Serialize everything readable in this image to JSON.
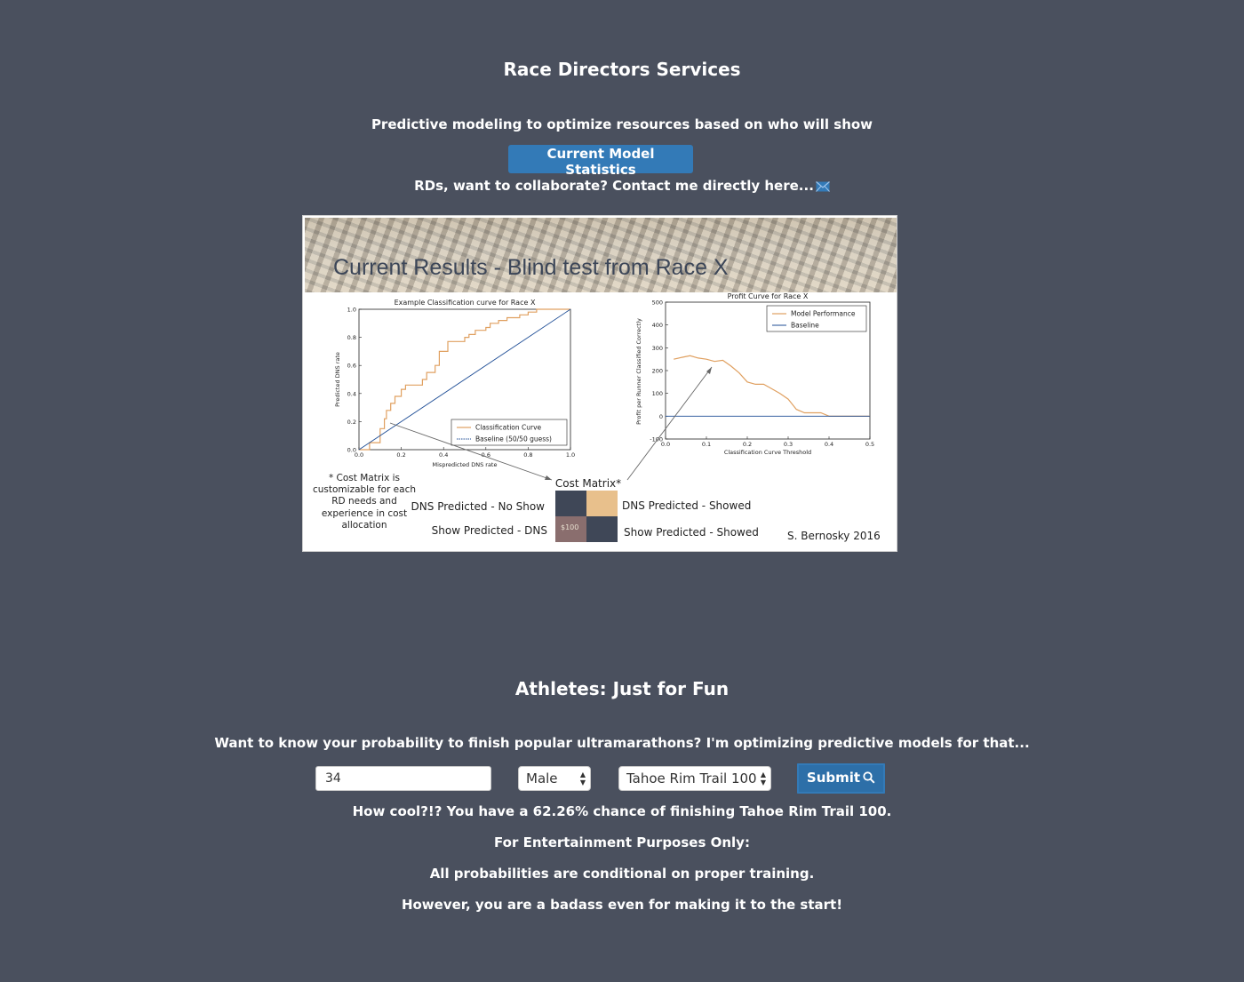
{
  "rd": {
    "title": "Race Directors Services",
    "subtitle": "Predictive modeling to optimize resources based on who will show",
    "stats_button": "Current Model Statistics",
    "collab_text": "RDs, want to collaborate? Contact me directly here...",
    "mail_icon": "envelope-icon"
  },
  "figure": {
    "banner_title": "Current Results - Blind test from Race X",
    "note": [
      "* Cost Matrix is",
      "customizable for each",
      "RD needs and",
      "experience in cost",
      "allocation"
    ],
    "cost_matrix": {
      "title": "Cost Matrix*",
      "row1_left": "DNS Predicted - No Show",
      "row1_right": "DNS Predicted - Showed",
      "row2_left": "Show Predicted - DNS",
      "row2_right": "Show Predicted - Showed",
      "cell_value": "$100",
      "colors": {
        "dark": "#3f4757",
        "peach": "#e8c08c",
        "mauve": "#8a6e6e"
      }
    },
    "credit": "S. Bernosky 2016"
  },
  "chart_data": [
    {
      "type": "line",
      "title": "Example Classification curve for Race X",
      "xlabel": "Mispredicted DNS rate",
      "ylabel": "Predicted DNS rate",
      "xlim": [
        0,
        1
      ],
      "ylim": [
        0,
        1
      ],
      "xticks": [
        "0.0",
        "0.2",
        "0.4",
        "0.6",
        "0.8",
        "1.0"
      ],
      "yticks": [
        "0.0",
        "0.2",
        "0.4",
        "0.6",
        "0.8",
        "1.0"
      ],
      "legend": "bottom-right",
      "series": [
        {
          "name": "Classification Curve",
          "color": "#e0a060",
          "style": "step",
          "x": [
            0,
            0.05,
            0.05,
            0.1,
            0.1,
            0.12,
            0.12,
            0.13,
            0.13,
            0.15,
            0.15,
            0.17,
            0.17,
            0.2,
            0.2,
            0.22,
            0.22,
            0.3,
            0.3,
            0.32,
            0.32,
            0.36,
            0.36,
            0.38,
            0.38,
            0.42,
            0.42,
            0.5,
            0.5,
            0.52,
            0.52,
            0.55,
            0.55,
            0.6,
            0.6,
            0.62,
            0.62,
            0.66,
            0.66,
            0.7,
            0.7,
            0.76,
            0.76,
            0.8,
            0.8,
            0.84,
            0.84,
            0.9,
            0.9,
            1.0
          ],
          "y": [
            0,
            0,
            0.05,
            0.05,
            0.15,
            0.15,
            0.22,
            0.22,
            0.28,
            0.28,
            0.33,
            0.33,
            0.38,
            0.38,
            0.43,
            0.43,
            0.46,
            0.46,
            0.5,
            0.5,
            0.55,
            0.55,
            0.6,
            0.6,
            0.7,
            0.7,
            0.77,
            0.77,
            0.8,
            0.8,
            0.82,
            0.82,
            0.85,
            0.85,
            0.87,
            0.87,
            0.9,
            0.9,
            0.92,
            0.92,
            0.94,
            0.94,
            0.96,
            0.96,
            0.98,
            0.98,
            1.0,
            1.0,
            1.0,
            1.0
          ]
        },
        {
          "name": "Baseline (50/50 guess)",
          "color": "#1f4e96",
          "style": "line",
          "x": [
            0,
            1
          ],
          "y": [
            0,
            1
          ]
        }
      ]
    },
    {
      "type": "line",
      "title": "Profit Curve for Race X",
      "xlabel": "Classification Curve Threshold",
      "ylabel": "Profit per Runner Classified Correctly",
      "xlim": [
        0,
        0.5
      ],
      "ylim": [
        -100,
        500
      ],
      "xticks": [
        "0.0",
        "0.1",
        "0.2",
        "0.3",
        "0.4",
        "0.5"
      ],
      "yticks": [
        "-100",
        "0",
        "100",
        "200",
        "300",
        "400",
        "500"
      ],
      "legend": "top-right",
      "series": [
        {
          "name": "Model Performance",
          "color": "#e0a060",
          "style": "line",
          "x": [
            0.02,
            0.04,
            0.06,
            0.08,
            0.1,
            0.12,
            0.14,
            0.16,
            0.18,
            0.2,
            0.22,
            0.24,
            0.26,
            0.28,
            0.3,
            0.32,
            0.34,
            0.36,
            0.38,
            0.4,
            0.42,
            0.44,
            0.46,
            0.48,
            0.5
          ],
          "y": [
            250,
            258,
            265,
            255,
            250,
            240,
            245,
            220,
            190,
            150,
            140,
            140,
            120,
            100,
            75,
            30,
            15,
            15,
            15,
            0,
            0,
            0,
            0,
            0,
            0
          ]
        },
        {
          "name": "Baseline",
          "color": "#1f4e96",
          "style": "line",
          "x": [
            0,
            0.5
          ],
          "y": [
            0,
            0
          ]
        }
      ]
    }
  ],
  "athletes": {
    "title": "Athletes: Just for Fun",
    "subtitle": "Want to know your probability to finish popular ultramarathons? I'm optimizing predictive models for that...",
    "age_value": "34",
    "gender_value": "Male",
    "race_value": "Tahoe Rim Trail 100",
    "submit_label": "Submit",
    "submit_icon": "search-icon",
    "result": "How cool?!? You have a 62.26% chance of finishing Tahoe Rim Trail 100.",
    "entertainment": "For Entertainment Purposes Only:",
    "conditional": "All probabilities are conditional on proper training.",
    "badass": "However, you are a badass even for making it to the start!"
  }
}
